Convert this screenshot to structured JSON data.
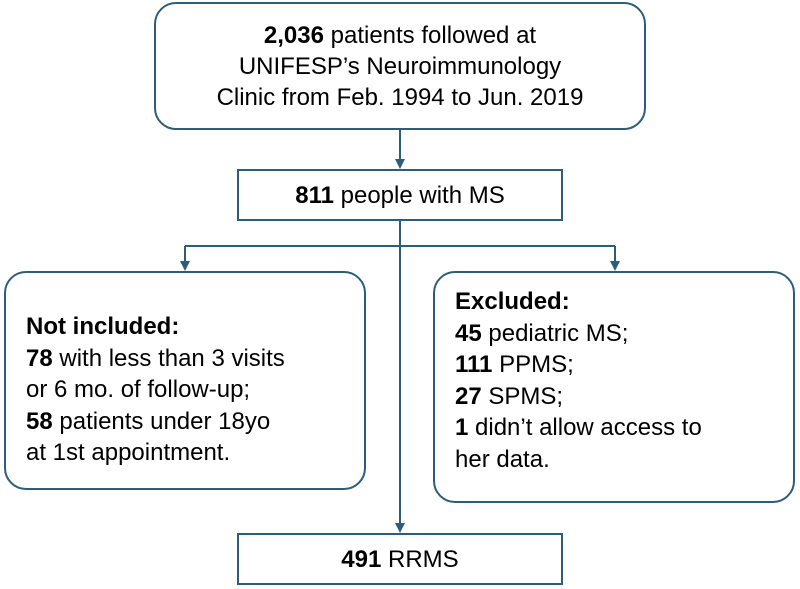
{
  "colors": {
    "border": "#2e5d78",
    "connector": "#2e5d78"
  },
  "top": {
    "line1_num": "2,036",
    "line1_text": " patients followed at",
    "line2": "UNIFESP’s Neuroimmunology",
    "line3": "Clinic from Feb. 1994 to Jun. 2019"
  },
  "ms": {
    "num": "811",
    "text": " people with MS"
  },
  "not_included": {
    "heading": "Not included:",
    "item1_num": "78",
    "item1_text": " with less than 3 visits",
    "item1_text2": "or 6 mo. of follow-up;",
    "item2_num": "58",
    "item2_text": " patients under 18yo",
    "item2_text2": "at 1st appointment."
  },
  "excluded": {
    "heading": "Excluded:",
    "item1_num": "45",
    "item1_text": " pediatric MS;",
    "item2_num": "111",
    "item2_text": " PPMS;",
    "item3_num": "27",
    "item3_text": " SPMS;",
    "item4_num": "1",
    "item4_text": " didn’t allow access to",
    "item4_text2": "her data."
  },
  "rrms": {
    "num": "491",
    "text": " RRMS"
  }
}
